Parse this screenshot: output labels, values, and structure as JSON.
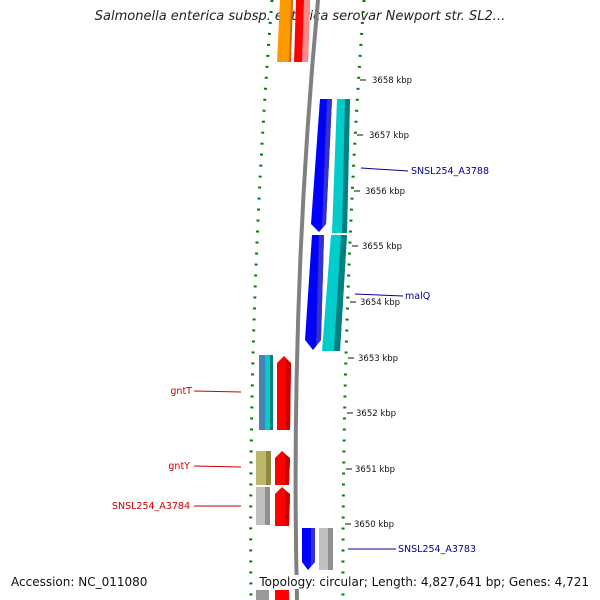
{
  "title": "Salmonella enterica subsp. enterica serovar Newport str. SL2...",
  "footer": {
    "accession": "Accession: NC_011080",
    "summary": "Topology: circular; Length: 4,827,641 bp; Genes: 4,721"
  },
  "scale_labels": [
    "3658 kbp",
    "3657 kbp",
    "3656 kbp",
    "3655 kbp",
    "3654 kbp",
    "3653 kbp",
    "3652 kbp",
    "3651 kbp",
    "3650 kbp"
  ],
  "gene_labels": {
    "right": [
      "SNSL254_A3788",
      "malQ",
      "SNSL254_A3783"
    ],
    "left": [
      "gntT",
      "gntY",
      "SNSL254_A3784"
    ]
  },
  "colors": {
    "forward_cds": "#ff0000",
    "reverse_cds": "#0000ff",
    "cog_cyan": "#00cccc",
    "cog_orange": "#ff9900",
    "cog_steel": "#4682b4",
    "cog_olive": "#bdb76b",
    "cog_gray": "#c0c0c0",
    "backbone": "#808080",
    "gc_skew": "#008000",
    "label_forward": "#cc0000",
    "label_reverse": "#000099"
  }
}
